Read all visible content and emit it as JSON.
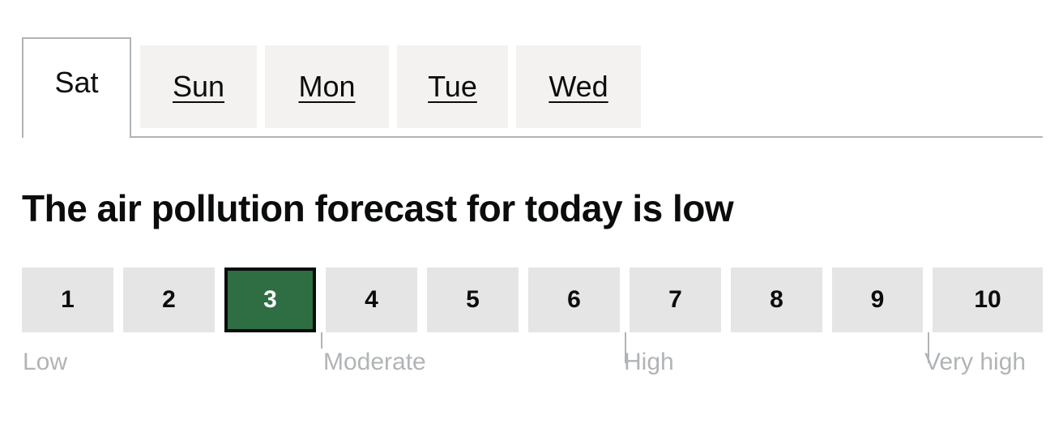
{
  "tabs": [
    {
      "label": "Sat",
      "selected": true
    },
    {
      "label": "Sun",
      "selected": false
    },
    {
      "label": "Mon",
      "selected": false
    },
    {
      "label": "Tue",
      "selected": false
    },
    {
      "label": "Wed",
      "selected": false
    }
  ],
  "heading": "The air pollution forecast for today is low",
  "scale": {
    "current_value": 3,
    "current_color": "#2e6e42",
    "inactive_color": "#e5e5e5",
    "bands": [
      "1",
      "2",
      "3",
      "4",
      "5",
      "6",
      "7",
      "8",
      "9",
      "10"
    ],
    "levels": [
      "Low",
      "Moderate",
      "High",
      "Very high"
    ]
  }
}
